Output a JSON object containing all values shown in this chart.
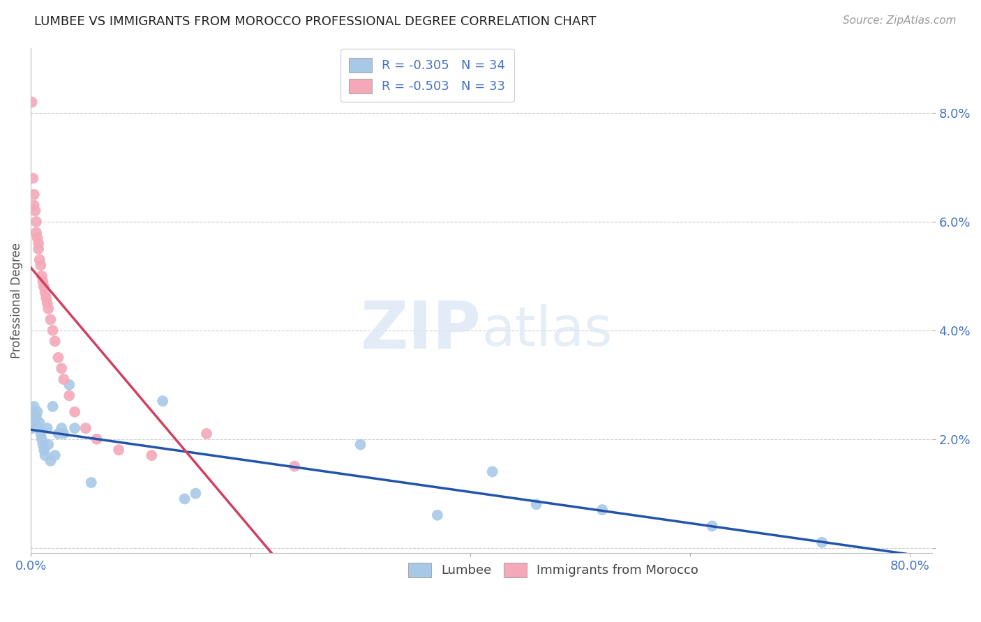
{
  "title": "LUMBEE VS IMMIGRANTS FROM MOROCCO PROFESSIONAL DEGREE CORRELATION CHART",
  "source": "Source: ZipAtlas.com",
  "ylabel": "Professional Degree",
  "xlim": [
    0.0,
    0.82
  ],
  "ylim": [
    -0.001,
    0.092
  ],
  "lumbee_R": -0.305,
  "lumbee_N": 34,
  "morocco_R": -0.503,
  "morocco_N": 33,
  "lumbee_color": "#A8C8E8",
  "morocco_color": "#F4A8B8",
  "lumbee_line_color": "#2255AA",
  "morocco_line_color": "#D04060",
  "legend_lumbee_label": "Lumbee",
  "legend_morocco_label": "Immigrants from Morocco",
  "lumbee_x": [
    0.001,
    0.002,
    0.003,
    0.004,
    0.005,
    0.006,
    0.007,
    0.008,
    0.009,
    0.01,
    0.011,
    0.012,
    0.013,
    0.015,
    0.016,
    0.018,
    0.02,
    0.022,
    0.025,
    0.028,
    0.03,
    0.035,
    0.04,
    0.055,
    0.12,
    0.14,
    0.15,
    0.3,
    0.37,
    0.42,
    0.46,
    0.52,
    0.62,
    0.72
  ],
  "lumbee_y": [
    0.022,
    0.025,
    0.026,
    0.023,
    0.024,
    0.025,
    0.022,
    0.023,
    0.021,
    0.02,
    0.019,
    0.018,
    0.017,
    0.022,
    0.019,
    0.016,
    0.026,
    0.017,
    0.021,
    0.022,
    0.021,
    0.03,
    0.022,
    0.012,
    0.027,
    0.009,
    0.01,
    0.019,
    0.006,
    0.014,
    0.008,
    0.007,
    0.004,
    0.001
  ],
  "morocco_x": [
    0.001,
    0.002,
    0.003,
    0.003,
    0.004,
    0.005,
    0.005,
    0.006,
    0.007,
    0.007,
    0.008,
    0.009,
    0.01,
    0.011,
    0.012,
    0.013,
    0.014,
    0.015,
    0.016,
    0.018,
    0.02,
    0.022,
    0.025,
    0.028,
    0.03,
    0.035,
    0.04,
    0.05,
    0.06,
    0.08,
    0.11,
    0.16,
    0.24
  ],
  "morocco_y": [
    0.082,
    0.068,
    0.065,
    0.063,
    0.062,
    0.06,
    0.058,
    0.057,
    0.056,
    0.055,
    0.053,
    0.052,
    0.05,
    0.049,
    0.048,
    0.047,
    0.046,
    0.045,
    0.044,
    0.042,
    0.04,
    0.038,
    0.035,
    0.033,
    0.031,
    0.028,
    0.025,
    0.022,
    0.02,
    0.018,
    0.017,
    0.021,
    0.015
  ]
}
